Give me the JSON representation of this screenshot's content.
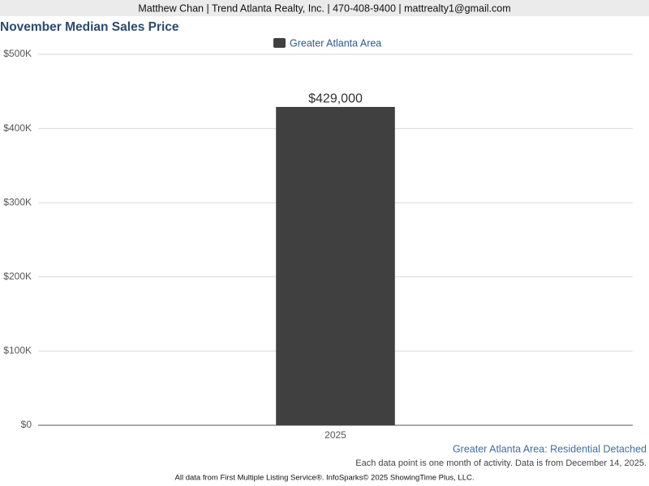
{
  "header": {
    "contact": "Matthew Chan | Trend Atlanta Realty, Inc. | 470-408-9400 | mattrealty1@gmail.com"
  },
  "chart_data": {
    "type": "bar",
    "title": "November Median Sales Price",
    "categories": [
      "2025"
    ],
    "series": [
      {
        "name": "Greater Atlanta Area",
        "color": "#404040",
        "values": [
          429000
        ],
        "value_labels": [
          "$429,000"
        ]
      }
    ],
    "ylim": [
      0,
      500000
    ],
    "yticks": [
      {
        "value": 0,
        "label": "$0"
      },
      {
        "value": 100000,
        "label": "$100K"
      },
      {
        "value": 200000,
        "label": "$200K"
      },
      {
        "value": 300000,
        "label": "$300K"
      },
      {
        "value": 400000,
        "label": "$400K"
      },
      {
        "value": 500000,
        "label": "$500K"
      }
    ],
    "grid": true,
    "legend": "top"
  },
  "footer": {
    "series_note": "Greater Atlanta Area: Residential Detached",
    "data_note": "Each data point is one month of activity. Data is from December 14, 2025.",
    "source": "All data from First Multiple Listing Service®. InfoSparks© 2025 ShowingTime Plus, LLC."
  }
}
